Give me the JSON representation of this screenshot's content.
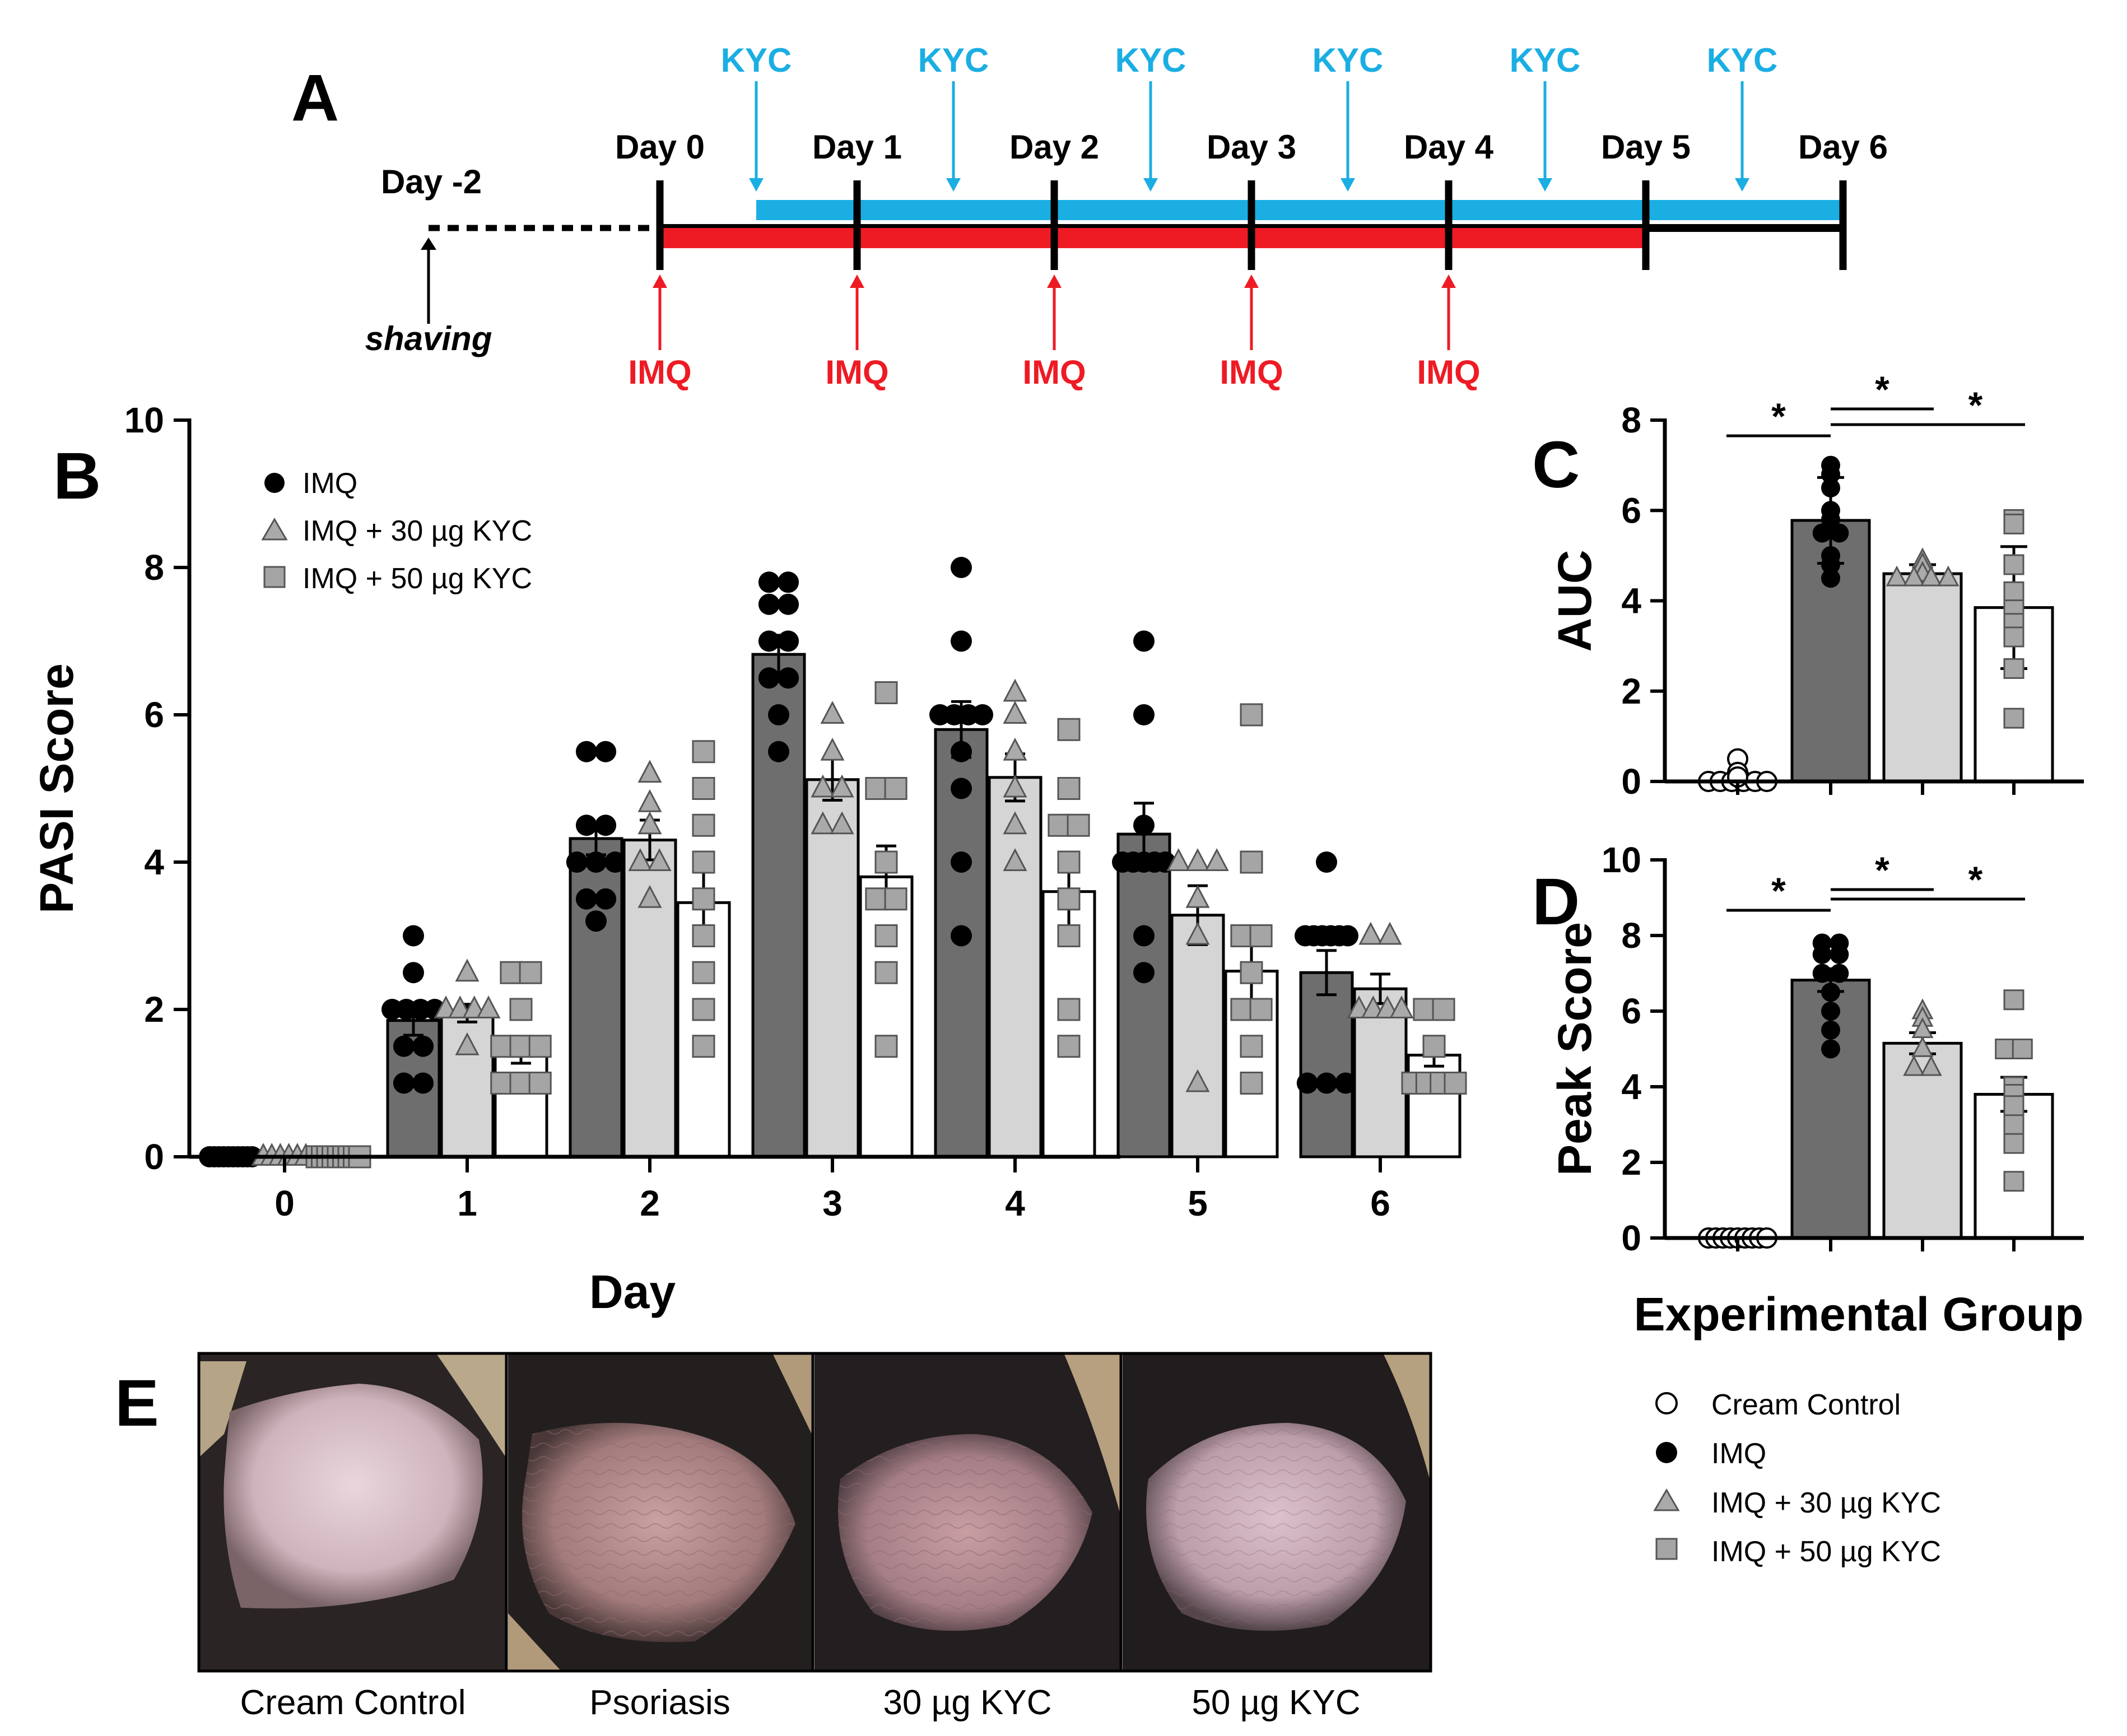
{
  "panel_labels": {
    "a": "A",
    "b": "B",
    "c": "C",
    "d": "D",
    "e": "E"
  },
  "timeline": {
    "pre_label": "Day -2",
    "pre_event": "shaving",
    "days": [
      "Day 0",
      "Day 1",
      "Day 2",
      "Day 3",
      "Day 4",
      "Day 5",
      "Day 6"
    ],
    "kyc_label": "KYC",
    "imq_label": "IMQ",
    "kyc_count": 6,
    "imq_count": 5,
    "kyc_color": "#1aaee3",
    "imq_color": "#ee1b24"
  },
  "colors": {
    "imq_bar": "#6e6e6e",
    "kyc30_bar": "#d5d5d5",
    "kyc50_bar": "#ffffff",
    "control_bar": "#ffffff",
    "triangle_fill": "#aaaaaa",
    "square_fill": "#a5a5a5"
  },
  "chart_data": [
    {
      "id": "B",
      "type": "bar",
      "title": "",
      "xlabel": "Day",
      "ylabel": "PASI Score",
      "ylim": [
        0,
        10
      ],
      "yticks": [
        "0",
        "2",
        "4",
        "6",
        "8",
        "10"
      ],
      "categories": [
        "0",
        "1",
        "2",
        "3",
        "4",
        "5",
        "6"
      ],
      "legend": [
        "IMQ",
        "IMQ + 30 µg KYC",
        "IMQ + 50 µg KYC"
      ],
      "series": [
        {
          "name": "IMQ",
          "marker": "circle",
          "values": [
            0,
            1.85,
            4.32,
            6.82,
            5.8,
            4.38,
            2.5
          ],
          "sem": [
            0,
            0.2,
            0.22,
            0.26,
            0.38,
            0.42,
            0.3
          ],
          "points": [
            [
              0,
              0,
              0,
              0,
              0,
              0,
              0,
              0,
              0,
              0
            ],
            [
              3,
              2.5,
              2,
              2,
              2,
              2,
              1.5,
              1.5,
              1,
              1
            ],
            [
              5.5,
              5.5,
              4.5,
              4.5,
              4,
              4,
              4,
              3.5,
              3.5,
              3.2
            ],
            [
              7.8,
              7.8,
              7.5,
              7.5,
              7,
              7,
              6.5,
              6.5,
              6,
              5.5
            ],
            [
              8,
              7,
              6,
              6,
              6,
              6,
              5.5,
              5,
              4,
              3
            ],
            [
              7,
              6,
              4.5,
              4,
              4,
              4,
              4,
              4,
              3,
              2.5
            ],
            [
              4,
              3,
              3,
              3,
              3,
              3,
              3,
              1,
              1,
              1
            ]
          ]
        },
        {
          "name": "IMQ + 30 µg KYC",
          "marker": "triangle",
          "values": [
            0,
            1.95,
            4.3,
            5.12,
            5.15,
            3.28,
            2.28
          ],
          "sem": [
            0,
            0.12,
            0.27,
            0.28,
            0.32,
            0.4,
            0.2
          ],
          "points": [
            [
              0,
              0,
              0,
              0,
              0,
              0
            ],
            [
              2.5,
              2,
              2,
              2,
              2,
              1.5
            ],
            [
              5.2,
              4.8,
              4.5,
              4,
              4,
              3.5
            ],
            [
              6,
              5.5,
              5,
              5,
              4.5,
              4.5
            ],
            [
              6.3,
              6,
              5.5,
              5,
              4.5,
              4
            ],
            [
              4,
              4,
              4,
              3.5,
              3,
              1
            ],
            [
              3,
              3,
              2,
              2,
              2,
              2
            ]
          ]
        },
        {
          "name": "IMQ + 50 µg KYC",
          "marker": "square",
          "values": [
            0,
            1.45,
            3.45,
            3.8,
            3.6,
            2.52,
            1.38
          ],
          "sem": [
            0,
            0.18,
            0.45,
            0.42,
            0.48,
            0.52,
            0.15
          ],
          "points": [
            [
              0,
              0,
              0,
              0,
              0,
              0,
              0,
              0,
              0
            ],
            [
              2.5,
              2.5,
              2,
              1.5,
              1.5,
              1.5,
              1,
              1,
              1
            ],
            [
              5.5,
              5,
              4.5,
              4,
              3.5,
              3,
              2.5,
              2,
              1.5
            ],
            [
              6.3,
              5,
              5,
              4,
              3.5,
              3.5,
              3,
              2.5,
              1.5
            ],
            [
              5.8,
              5,
              4.5,
              4.5,
              4,
              3.5,
              3,
              2,
              1.5
            ],
            [
              6,
              4,
              3,
              3,
              2.5,
              2,
              2,
              1.5,
              1
            ],
            [
              2,
              2,
              1.5,
              1,
              1,
              1,
              1
            ]
          ]
        }
      ]
    },
    {
      "id": "C",
      "type": "bar",
      "title": "",
      "xlabel": "",
      "ylabel": "AUC",
      "ylim": [
        0,
        8
      ],
      "yticks": [
        "0",
        "2",
        "4",
        "6",
        "8"
      ],
      "categories": [
        "Cream Control",
        "IMQ",
        "IMQ + 30 µg KYC",
        "IMQ + 50 µg KYC"
      ],
      "series": [
        {
          "name": "mean",
          "values": [
            0.12,
            5.78,
            4.6,
            3.85
          ],
          "sd": [
            0.15,
            0.95,
            0.2,
            1.35
          ],
          "points": [
            [
              0.5,
              0.2,
              0.1,
              0,
              0,
              0,
              0,
              0,
              0
            ],
            [
              7,
              6.8,
              6.5,
              6,
              5.8,
              5.5,
              5.5,
              5,
              4.8,
              4.5
            ],
            [
              4.9,
              4.8,
              4.6,
              4.5,
              4.5,
              4.5,
              4.5
            ],
            [
              5.8,
              5.7,
              4.8,
              4.2,
              3.8,
              3.5,
              3.2,
              2.5,
              1.4
            ]
          ]
        }
      ],
      "significance": [
        {
          "label": "*"
        },
        {
          "label": "*"
        },
        {
          "label": "*"
        }
      ]
    },
    {
      "id": "D",
      "type": "bar",
      "title": "",
      "xlabel": "Experimental Group",
      "ylabel": "Peak Score",
      "ylim": [
        0,
        10
      ],
      "yticks": [
        "0",
        "2",
        "4",
        "6",
        "8",
        "10"
      ],
      "categories": [
        "Cream Control",
        "IMQ",
        "IMQ + 30 µg KYC",
        "IMQ + 50 µg KYC"
      ],
      "series": [
        {
          "name": "mean",
          "values": [
            0,
            6.82,
            5.15,
            3.8
          ],
          "sem": [
            0,
            0.3,
            0.28,
            0.45
          ],
          "points": [
            [
              0,
              0,
              0,
              0,
              0,
              0,
              0,
              0,
              0
            ],
            [
              7.8,
              7.8,
              7.5,
              7.5,
              7,
              7,
              6.5,
              6,
              5.5,
              5
            ],
            [
              6,
              5.8,
              5.5,
              5,
              4.5,
              4.5
            ],
            [
              6.3,
              5,
              5,
              4,
              3.8,
              3.5,
              3,
              2.5,
              1.5
            ]
          ]
        }
      ],
      "significance": [
        {
          "label": "*"
        },
        {
          "label": "*"
        },
        {
          "label": "*"
        }
      ]
    }
  ],
  "group_legend": [
    "Cream Control",
    "IMQ",
    "IMQ + 30 µg KYC",
    "IMQ + 50 µg KYC"
  ],
  "photos": [
    "Cream Control",
    "Psoriasis",
    "30 µg KYC",
    "50 µg KYC"
  ]
}
